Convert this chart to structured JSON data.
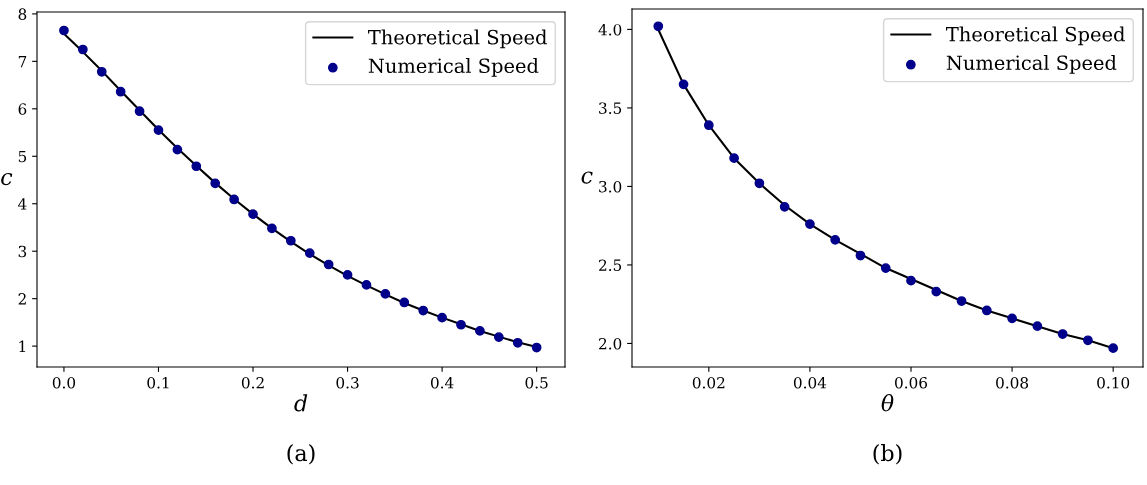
{
  "chart_data": [
    {
      "type": "line",
      "xlabel": "d",
      "ylabel": "c",
      "annotations": [
        "(a)"
      ],
      "legend": "top right",
      "grid": false,
      "xlim": [
        -0.0285,
        0.53
      ],
      "xticks": [
        {
          "value": 0,
          "label": "0.0"
        },
        0.1,
        0.2,
        0.3,
        0.4,
        0.5
      ],
      "ylim": [
        0.56,
        8.04
      ],
      "yticks": [
        1,
        2,
        3,
        4,
        5,
        6,
        7,
        8
      ],
      "x": [
        0,
        0.02,
        0.04,
        0.06,
        0.08,
        0.1,
        0.12,
        0.14,
        0.16,
        0.18,
        0.2,
        0.22,
        0.24,
        0.26,
        0.28,
        0.3,
        0.32,
        0.34,
        0.36,
        0.38,
        0.4,
        0.42,
        0.44,
        0.46,
        0.48,
        0.5
      ],
      "series": [
        {
          "name": "Theoretical Speed",
          "color": "#000000",
          "marker": "none",
          "line_style": "solid",
          "values": [
            7.58,
            7.2,
            6.8,
            6.38,
            5.97,
            5.56,
            5.17,
            4.8,
            4.44,
            4.1,
            3.78,
            3.48,
            3.2,
            2.94,
            2.7,
            2.48,
            2.28,
            2.09,
            1.91,
            1.75,
            1.6,
            1.46,
            1.32,
            1.2,
            1.08,
            0.98
          ]
        },
        {
          "name": "Numerical Speed",
          "type": "scatter",
          "color": "#00008b",
          "marker": "circle",
          "values": [
            7.65,
            7.25,
            6.78,
            6.36,
            5.95,
            5.55,
            5.14,
            4.79,
            4.43,
            4.09,
            3.78,
            3.48,
            3.22,
            2.96,
            2.72,
            2.5,
            2.29,
            2.1,
            1.92,
            1.75,
            1.6,
            1.45,
            1.32,
            1.19,
            1.07,
            0.97
          ]
        }
      ]
    },
    {
      "type": "line",
      "xlabel": "θ",
      "ylabel": "c",
      "annotations": [
        "(b)"
      ],
      "legend": "top right",
      "grid": false,
      "xlim": [
        0.0048,
        0.1059
      ],
      "xticks": [
        0.02,
        0.04,
        0.06,
        0.08,
        {
          "value": 0.1,
          "label": "0.10"
        }
      ],
      "ylim": [
        1.85,
        4.13
      ],
      "yticks": [
        {
          "value": 2,
          "label": "2.0"
        },
        2.5,
        {
          "value": 3,
          "label": "3.0"
        },
        3.5,
        {
          "value": 4,
          "label": "4.0"
        }
      ],
      "x": [
        0.01,
        0.015,
        0.02,
        0.025,
        0.03,
        0.035,
        0.04,
        0.045,
        0.05,
        0.055,
        0.06,
        0.065,
        0.07,
        0.075,
        0.08,
        0.085,
        0.09,
        0.095,
        0.1
      ],
      "series": [
        {
          "name": "Theoretical Speed",
          "color": "#000000",
          "marker": "none",
          "line_style": "solid",
          "values": [
            4.0,
            3.65,
            3.39,
            3.18,
            3.02,
            2.88,
            2.76,
            2.66,
            2.57,
            2.48,
            2.41,
            2.34,
            2.27,
            2.21,
            2.16,
            2.11,
            2.06,
            2.02,
            1.97
          ]
        },
        {
          "name": "Numerical Speed",
          "type": "scatter",
          "color": "#00008b",
          "marker": "circle",
          "values": [
            4.02,
            3.65,
            3.39,
            3.18,
            3.02,
            2.87,
            2.76,
            2.66,
            2.56,
            2.48,
            2.4,
            2.33,
            2.27,
            2.21,
            2.16,
            2.11,
            2.06,
            2.02,
            1.97
          ]
        }
      ]
    }
  ]
}
